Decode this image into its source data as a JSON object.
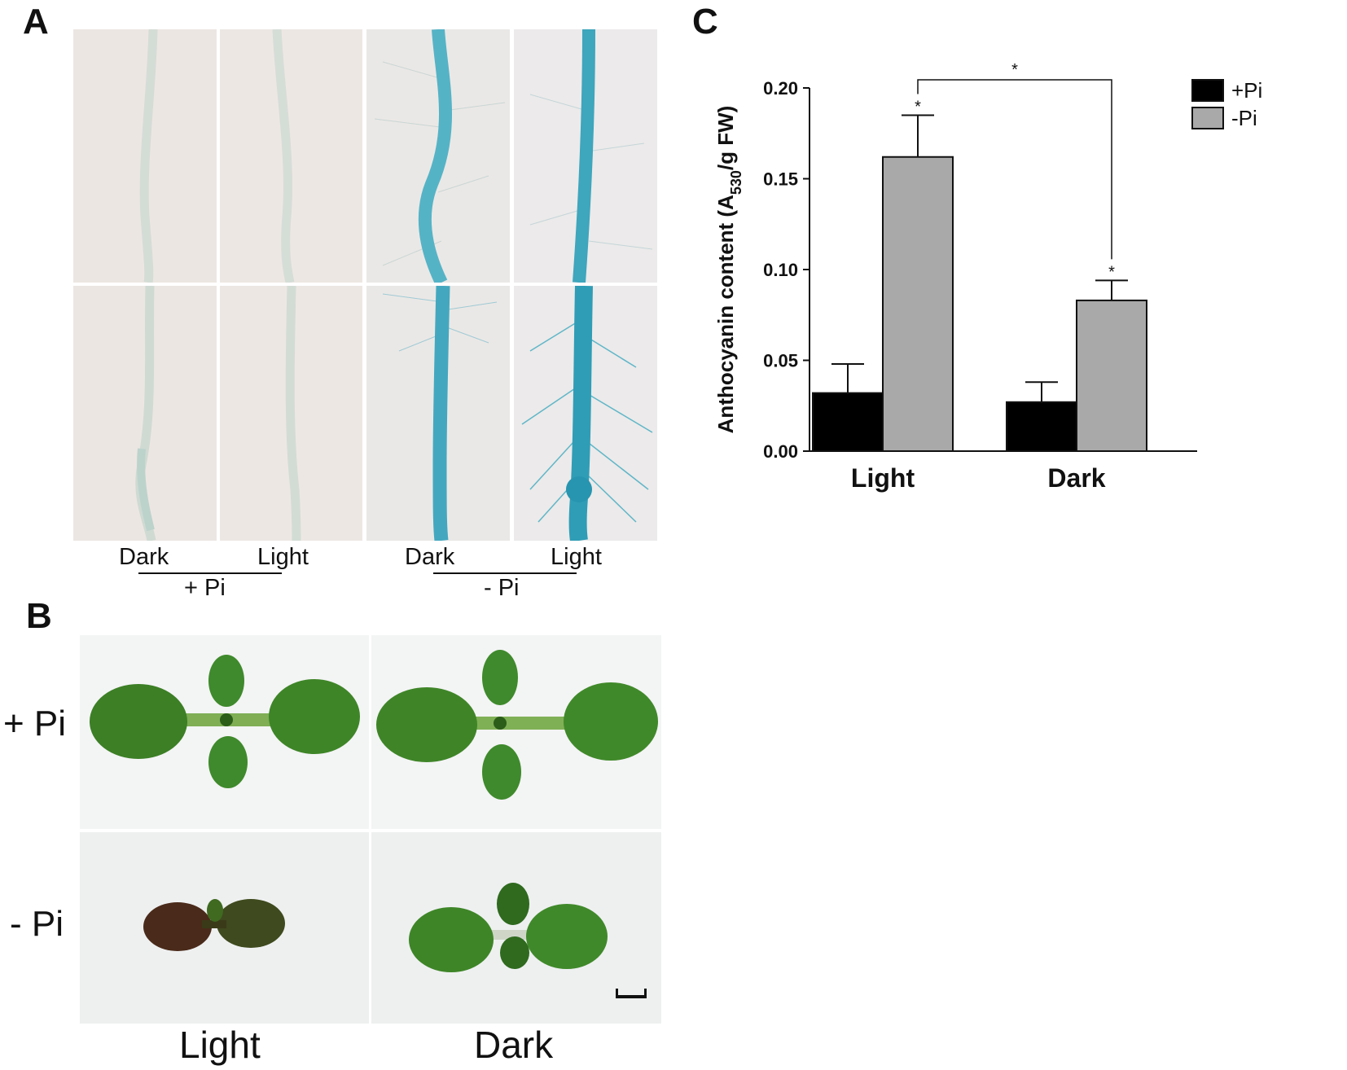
{
  "panels": {
    "a": {
      "letter": "A",
      "labels": {
        "dark1": "Dark",
        "light1": "Light",
        "plus_pi": "+ Pi",
        "dark2": "Dark",
        "light2": "Light",
        "minus_pi": "- Pi"
      }
    },
    "b": {
      "letter": "B",
      "row_labels": {
        "plus_pi": "+ Pi",
        "minus_pi": "- Pi"
      },
      "col_labels": {
        "light": "Light",
        "dark": "Dark"
      }
    },
    "c": {
      "letter": "C"
    }
  },
  "colors": {
    "stain_blue": "#3aa8be",
    "seedling_green": "#3f8a2c",
    "bar_plus": "#000000",
    "bar_minus": "#a9a9a9"
  },
  "chart_data": {
    "type": "bar",
    "categories": [
      "Light",
      "Dark"
    ],
    "series": [
      {
        "name": "+Pi",
        "values": [
          0.032,
          0.027
        ],
        "errors": [
          0.016,
          0.011
        ],
        "color": "#000000"
      },
      {
        "name": "-Pi",
        "values": [
          0.162,
          0.083
        ],
        "errors": [
          0.023,
          0.011
        ],
        "color": "#a9a9a9"
      }
    ],
    "ylabel_main": "Anthocyanin content (A",
    "ylabel_sub": "530",
    "ylabel_end": "/g FW)",
    "ylim": [
      0,
      0.2
    ],
    "yticks": [
      "0.00",
      "0.05",
      "0.10",
      "0.15",
      "0.20"
    ],
    "ytick_values": [
      0,
      0.05,
      0.1,
      0.15,
      0.2
    ],
    "legend_position": "top-right",
    "significance_mark": "*",
    "annotations": [
      "*",
      "*",
      "*"
    ]
  }
}
